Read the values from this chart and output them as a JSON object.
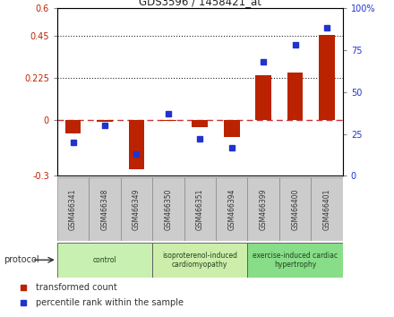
{
  "title": "GDS3596 / 1458421_at",
  "samples": [
    "GSM466341",
    "GSM466348",
    "GSM466349",
    "GSM466350",
    "GSM466351",
    "GSM466394",
    "GSM466399",
    "GSM466400",
    "GSM466401"
  ],
  "red_values": [
    -0.07,
    -0.01,
    -0.265,
    -0.005,
    -0.04,
    -0.09,
    0.24,
    0.255,
    0.455
  ],
  "blue_values": [
    20,
    30,
    13,
    37,
    22,
    17,
    68,
    78,
    88
  ],
  "ylim_left": [
    -0.3,
    0.6
  ],
  "ylim_right": [
    0,
    100
  ],
  "yticks_left": [
    -0.3,
    0.0,
    0.225,
    0.45,
    0.6
  ],
  "ytick_labels_left": [
    "-0.3",
    "0",
    "0.225",
    "0.45",
    "0.6"
  ],
  "yticks_right": [
    0,
    25,
    50,
    75,
    100
  ],
  "ytick_labels_right": [
    "0",
    "25",
    "50",
    "75",
    "100%"
  ],
  "hlines": [
    0.225,
    0.45
  ],
  "groups": [
    {
      "label": "control",
      "start": 0,
      "end": 3,
      "color": "#c8f0b0"
    },
    {
      "label": "isoproterenol-induced\ncardiomyopathy",
      "start": 3,
      "end": 6,
      "color": "#cceeaa"
    },
    {
      "label": "exercise-induced cardiac\nhypertrophy",
      "start": 6,
      "end": 9,
      "color": "#88dd88"
    }
  ],
  "red_color": "#bb2200",
  "blue_color": "#2233cc",
  "bar_width": 0.5,
  "legend_red": "transformed count",
  "legend_blue": "percentile rank within the sample",
  "protocol_label": "protocol",
  "zero_line_color": "#cc3333",
  "dotted_line_color": "#222222",
  "bg_color": "#ffffff",
  "sample_box_color": "#cccccc",
  "sample_box_edge": "#888888",
  "group_box_edge": "#555555"
}
